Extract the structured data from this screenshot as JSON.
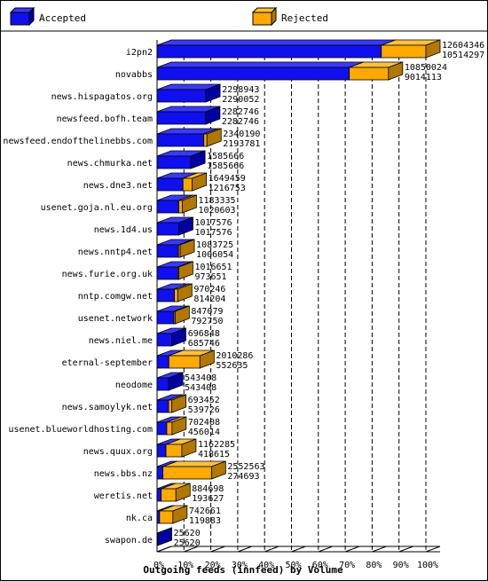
{
  "chart_data": {
    "type": "bar",
    "title": "Outgoing feeds (innfeed) by Volume",
    "legend": {
      "placement": "top",
      "items": [
        {
          "name": "Accepted",
          "color": "#1010ee"
        },
        {
          "name": "Rejected",
          "color": "#ffaa00"
        }
      ]
    },
    "colors": {
      "accepted_front": "#1010ee",
      "accepted_top": "#3a3aff",
      "accepted_side": "#0000a0",
      "rejected_front": "#ffaa00",
      "rejected_top": "#ffc23a",
      "rejected_side": "#b07800",
      "axis": "#000000",
      "grid": "#000000"
    },
    "xlim": [
      0,
      100
    ],
    "x_ticks": [
      "0%",
      "10%",
      "20%",
      "30%",
      "40%",
      "50%",
      "60%",
      "70%",
      "80%",
      "90%",
      "100%"
    ],
    "grid": true,
    "categories": [
      "i2pn2",
      "novabbs",
      "news.hispagatos.org",
      "newsfeed.bofh.team",
      "newsfeed.endofthelinebbs.com",
      "news.chmurka.net",
      "news.dne3.net",
      "usenet.goja.nl.eu.org",
      "news.1d4.us",
      "news.nntp4.net",
      "news.furie.org.uk",
      "nntp.comgw.net",
      "usenet.network",
      "news.niel.me",
      "eternal-september",
      "neodome",
      "news.samoylyk.net",
      "usenet.blueworldhosting.com",
      "news.quux.org",
      "news.bbs.nz",
      "weretis.net",
      "nk.ca",
      "swapon.de"
    ],
    "series": [
      {
        "name": "Rejected",
        "values": [
          12604346,
          10850024,
          2298943,
          2282746,
          2340190,
          1585666,
          1649459,
          1183335,
          1017576,
          1083725,
          1016651,
          970246,
          847079,
          696848,
          2010286,
          543408,
          693452,
          702408,
          1162285,
          2552563,
          884698,
          742661,
          25620
        ]
      },
      {
        "name": "Accepted",
        "values": [
          10514297,
          9014113,
          2290052,
          2282746,
          2193781,
          1585666,
          1216753,
          1020603,
          1017576,
          1006054,
          973651,
          814204,
          792750,
          685746,
          552635,
          543408,
          539726,
          456014,
          418615,
          274693,
          193627,
          119883,
          25620
        ]
      }
    ]
  }
}
